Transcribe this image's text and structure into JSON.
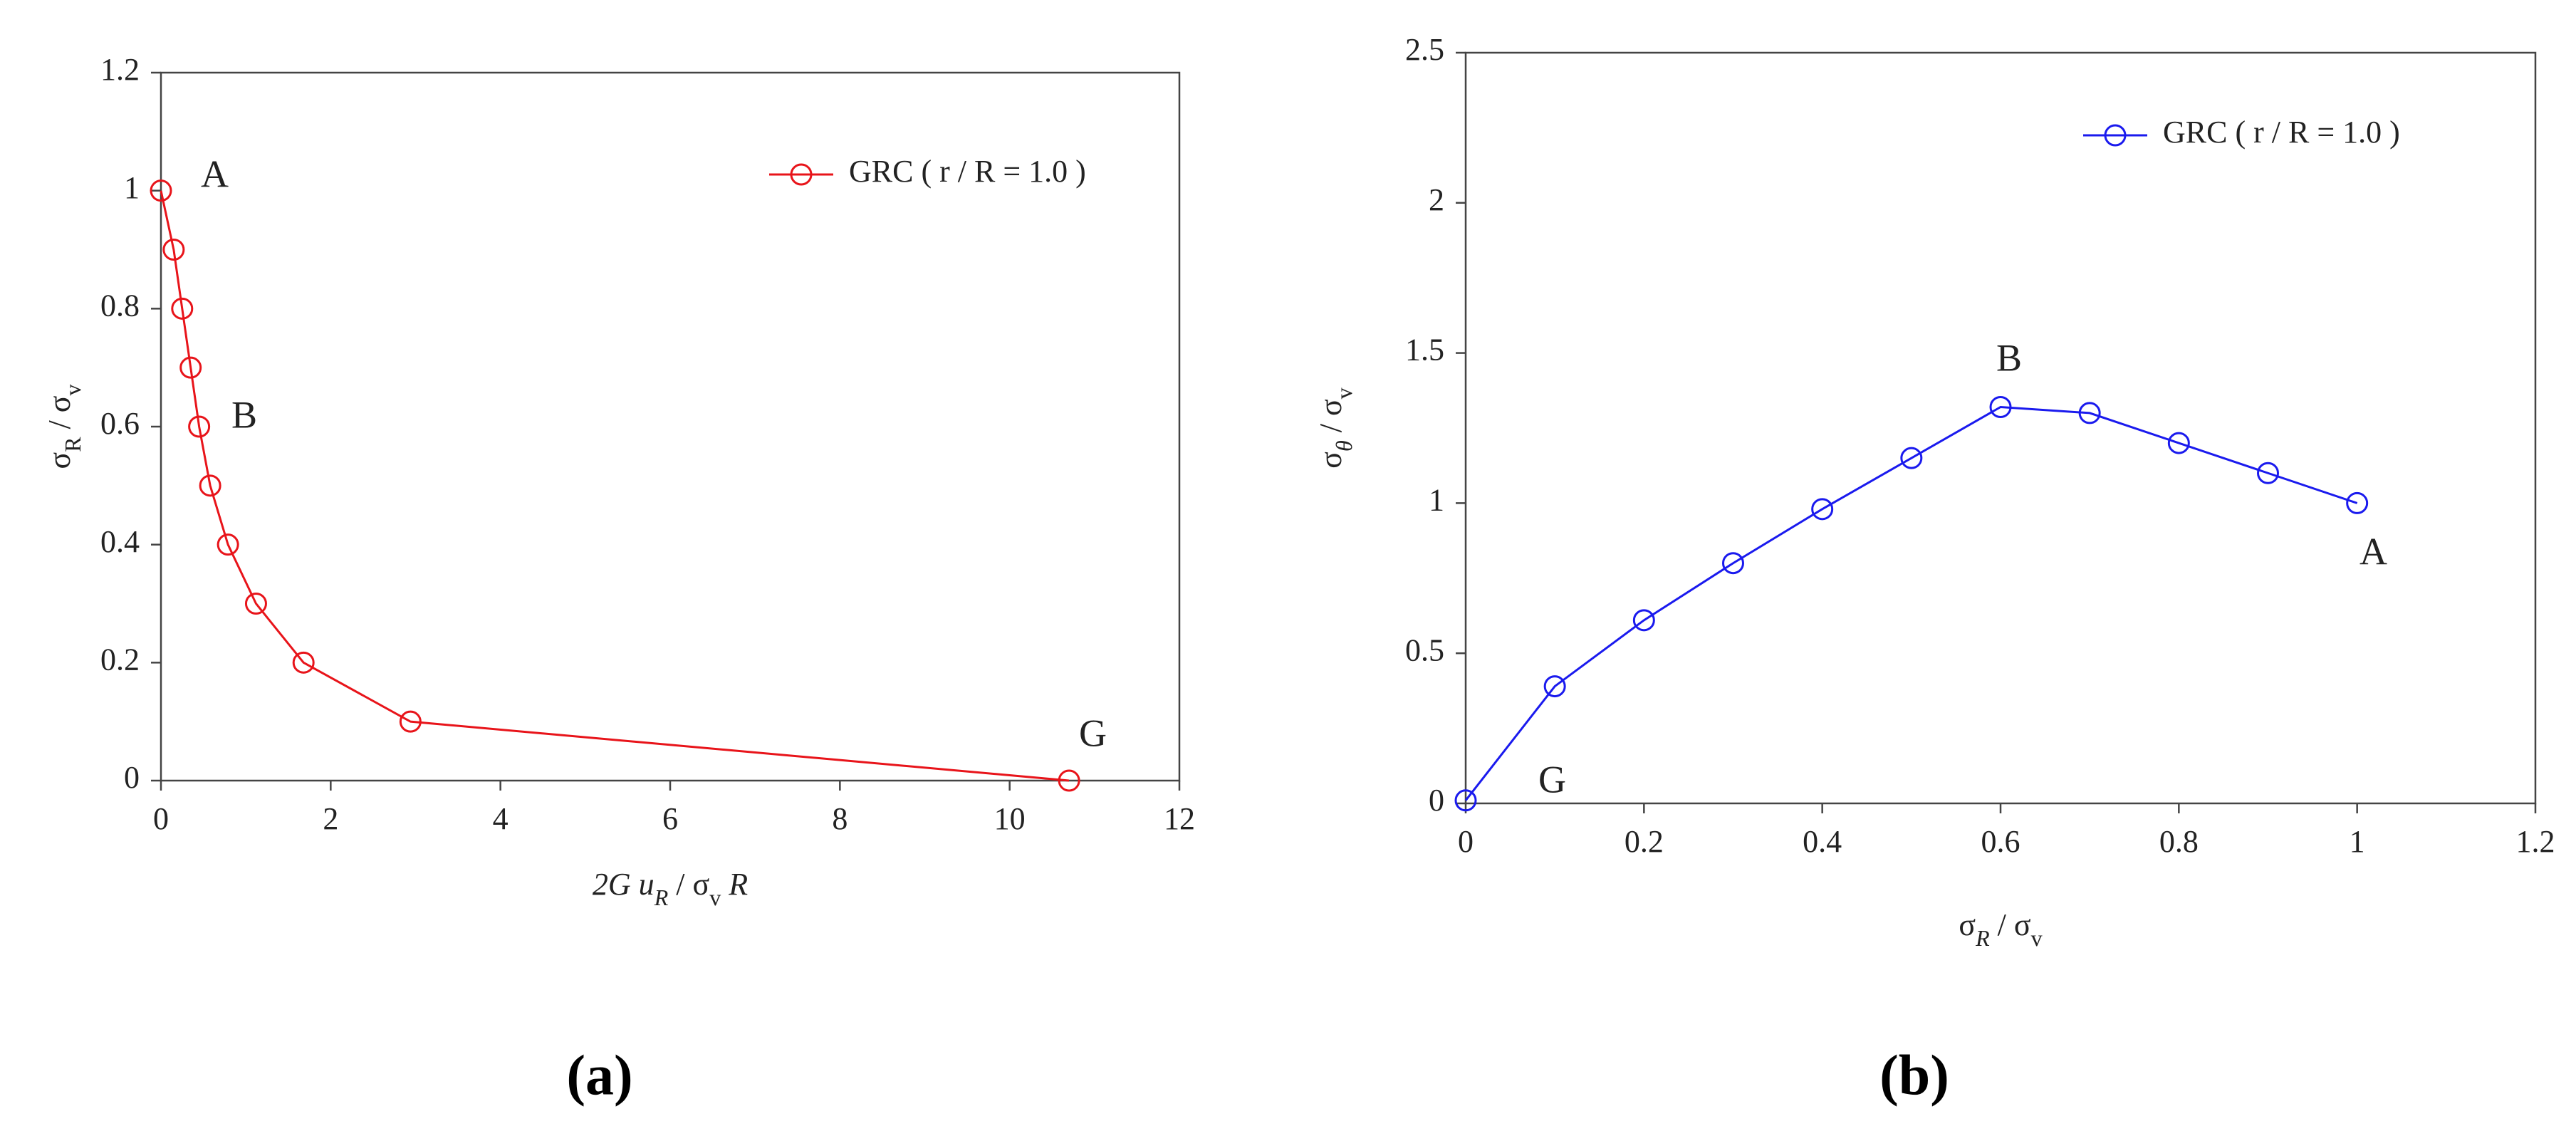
{
  "chart_data": [
    {
      "type": "line",
      "caption": "(a)",
      "xlabel": [
        {
          "t": "2G u",
          "italic": true
        },
        {
          "t": "R",
          "italic": true,
          "sub": true
        },
        {
          "t": " / σ"
        },
        {
          "t": "v",
          "sub": true
        },
        {
          "t": " R",
          "italic": true
        }
      ],
      "ylabel": [
        {
          "t": "σ"
        },
        {
          "t": "R",
          "sub": true
        },
        {
          "t": " / σ"
        },
        {
          "t": "v",
          "sub": true
        }
      ],
      "xlim": [
        0,
        12
      ],
      "xticks": [
        0,
        2,
        4,
        6,
        8,
        10,
        12
      ],
      "ylim": [
        0,
        1.2
      ],
      "yticks": [
        0,
        0.2,
        0.4,
        0.6,
        0.8,
        1,
        1.2
      ],
      "legend": "upper right",
      "series": [
        {
          "name": "GRC ( r / R = 1.0 )",
          "color": "#e8141a",
          "x": [
            0.0,
            0.15,
            0.25,
            0.35,
            0.45,
            0.58,
            0.79,
            1.12,
            1.68,
            2.94,
            10.7
          ],
          "values": [
            1,
            0.9,
            0.8,
            0.7,
            0.6,
            0.5,
            0.4,
            0.3,
            0.2,
            0.1,
            0
          ]
        }
      ],
      "annotations": [
        "A",
        "B",
        "G"
      ]
    },
    {
      "type": "line",
      "caption": "(b)",
      "xlabel": [
        {
          "t": "σ"
        },
        {
          "t": "R",
          "italic": true,
          "sub": true
        },
        {
          "t": " / σ"
        },
        {
          "t": "v",
          "sub": true
        }
      ],
      "ylabel": [
        {
          "t": "σ"
        },
        {
          "t": "θ",
          "italic": true,
          "sub": true
        },
        {
          "t": " / σ"
        },
        {
          "t": "v",
          "sub": true
        }
      ],
      "xlim": [
        0,
        1.2
      ],
      "xticks": [
        0,
        0.2,
        0.4,
        0.6,
        0.8,
        1,
        1.2
      ],
      "ylim": [
        0,
        2.5
      ],
      "yticks": [
        0,
        0.5,
        1,
        1.5,
        2,
        2.5
      ],
      "legend": "upper right",
      "series": [
        {
          "name": "GRC ( r / R = 1.0 )",
          "color": "#1a1aee",
          "x": [
            0,
            0.1,
            0.2,
            0.3,
            0.4,
            0.5,
            0.6,
            0.7,
            0.8,
            0.9,
            1
          ],
          "values": [
            0.01,
            0.39,
            0.61,
            0.8,
            0.98,
            1.15,
            1.32,
            1.3,
            1.2,
            1.1,
            1.0
          ]
        }
      ],
      "annotations": [
        "B",
        "A",
        "G"
      ]
    }
  ]
}
